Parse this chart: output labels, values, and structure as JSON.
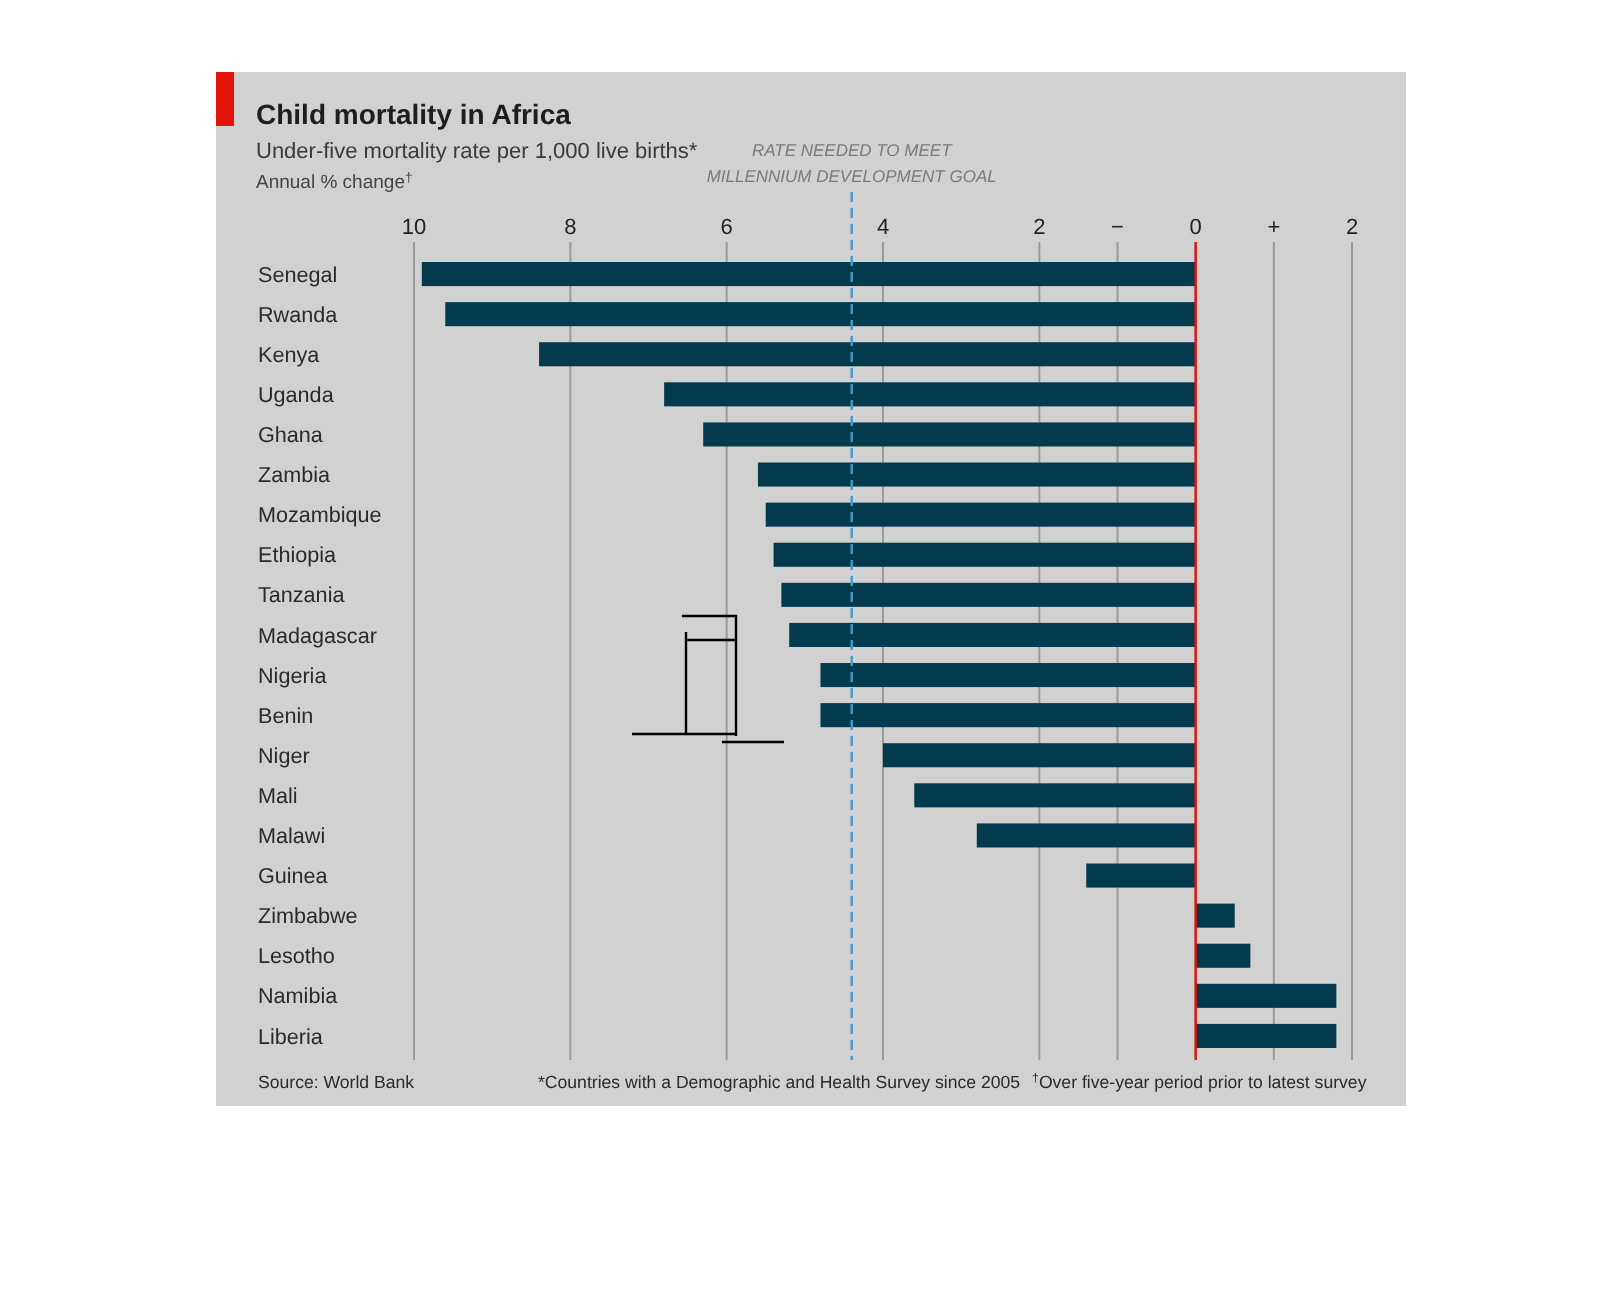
{
  "chart_data": {
    "type": "bar",
    "orientation": "horizontal",
    "title": "Child mortality in Africa",
    "subtitle": "Under-five mortality rate per 1,000 live births*",
    "xlabel": "Annual % change$^{†}$",
    "categories": [
      "Senegal",
      "Rwanda",
      "Kenya",
      "Uganda",
      "Ghana",
      "Zambia",
      "Mozambique",
      "Ethiopia",
      "Tanzania",
      "Madagascar",
      "Nigeria",
      "Benin",
      "Niger",
      "Mali",
      "Malawi",
      "Guinea",
      "Zimbabwe",
      "Lesotho",
      "Namibia",
      "Liberia"
    ],
    "values": [
      -9.9,
      -9.6,
      -8.4,
      -6.8,
      -6.3,
      -5.6,
      -5.5,
      -5.4,
      -5.3,
      -5.2,
      -4.8,
      -4.8,
      -4.0,
      -3.6,
      -2.8,
      -1.4,
      0.5,
      0.7,
      1.8,
      1.8
    ],
    "color": "#033a4e",
    "xlim": [
      -10,
      2
    ],
    "xticks": [
      {
        "value": -10,
        "label": "10"
      },
      {
        "value": -8,
        "label": "8"
      },
      {
        "value": -6,
        "label": "6"
      },
      {
        "value": -4,
        "label": "4"
      },
      {
        "value": -2,
        "label": "2"
      },
      {
        "value": -1,
        "label": "−"
      },
      0,
      {
        "value": 1,
        "label": "+"
      },
      2
    ],
    "grid": "x",
    "ref_lines": [
      {
        "axis": "x",
        "value": -4.4,
        "label": "RATE NEEDED TO MEET\nMILLENNIUM DEVELOPMENT GOAL",
        "color": "#3c9dcb",
        "line_style": "dashed"
      },
      {
        "axis": "x",
        "value": 0,
        "color": "#e3120b",
        "line_style": "solid"
      }
    ],
    "annotations": [
      "Source: World Bank",
      "*Countries with a Demographic and Health Survey since 2005",
      "$^{†}$Over five-year period prior to latest survey"
    ]
  }
}
